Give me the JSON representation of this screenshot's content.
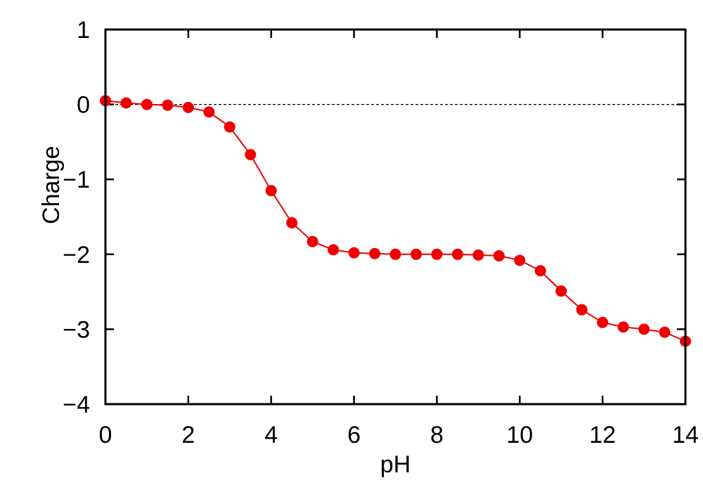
{
  "chart_data": {
    "type": "line",
    "title": "",
    "xlabel": "pH",
    "ylabel": "Charge",
    "xlim": [
      0,
      14
    ],
    "ylim": [
      -4,
      1
    ],
    "x_ticks": [
      "0",
      "2",
      "4",
      "6",
      "8",
      "10",
      "12",
      "14"
    ],
    "y_ticks": [
      "1",
      "0",
      "−1",
      "−2",
      "−3",
      "−4"
    ],
    "x_tick_values": [
      0,
      2,
      4,
      6,
      8,
      10,
      12,
      14
    ],
    "y_tick_values": [
      1,
      0,
      -1,
      -2,
      -3,
      -4
    ],
    "grid": false,
    "reference_line": {
      "y": 0,
      "style": "dashed"
    },
    "series": [
      {
        "color": "#ee0000",
        "marker": "circle",
        "x": [
          0,
          0.5,
          1,
          1.5,
          2,
          2.5,
          3,
          3.5,
          4,
          4.5,
          5,
          5.5,
          6,
          6.5,
          7,
          7.5,
          8,
          8.5,
          9,
          9.5,
          10,
          10.5,
          11,
          11.5,
          12,
          12.5,
          13,
          13.5,
          14
        ],
        "y": [
          0.05,
          0.02,
          0.0,
          -0.01,
          -0.04,
          -0.1,
          -0.3,
          -0.67,
          -1.15,
          -1.58,
          -1.83,
          -1.94,
          -1.98,
          -1.99,
          -2.0,
          -2.0,
          -2.0,
          -2.0,
          -2.01,
          -2.02,
          -2.08,
          -2.22,
          -2.49,
          -2.74,
          -2.91,
          -2.97,
          -3.0,
          -3.04,
          -3.16
        ]
      }
    ]
  }
}
